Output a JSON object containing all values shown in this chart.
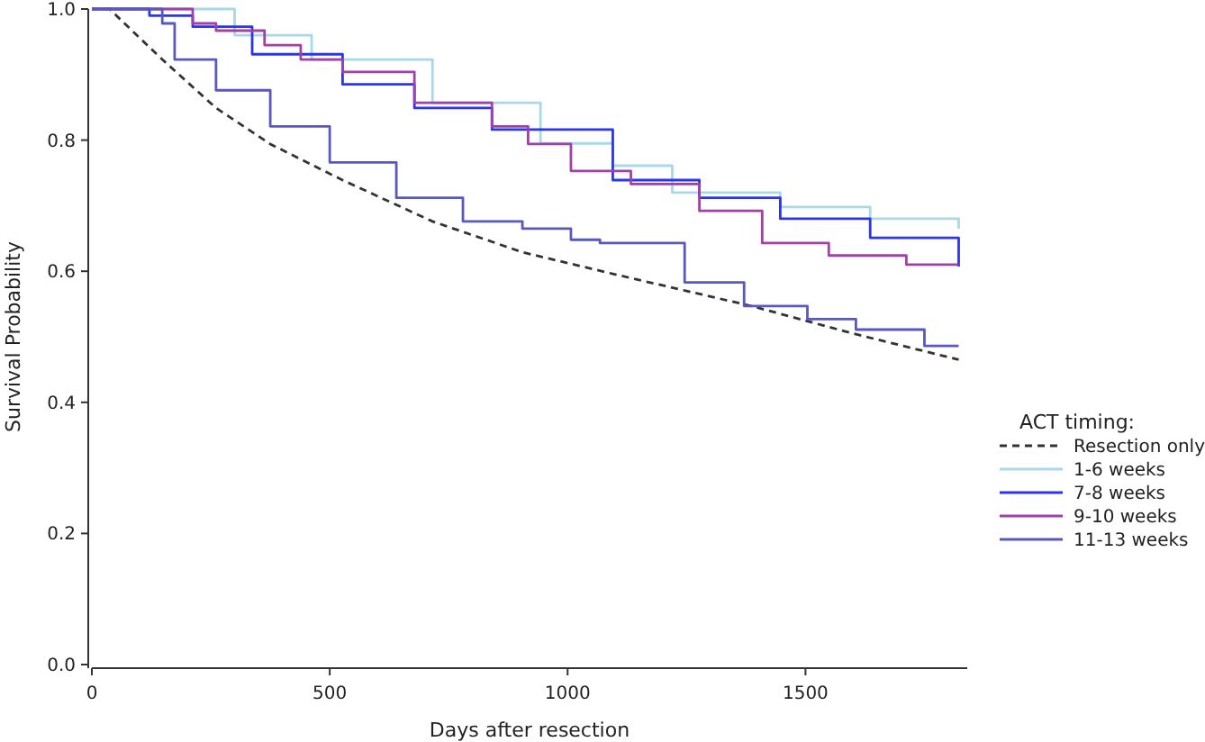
{
  "chart_data": {
    "type": "step",
    "xlabel": "Days after resection",
    "ylabel": "Survival Probability",
    "legend_title": "ACT timing:",
    "legend": "right",
    "xlim": [
      0,
      1840
    ],
    "ylim": [
      0,
      1
    ],
    "xticks": [
      0,
      500,
      1000,
      1500
    ],
    "yticks": [
      {
        "value": 0,
        "label": "0.0"
      },
      {
        "value": 0.2,
        "label": "0.2"
      },
      {
        "value": 0.4,
        "label": "0.4"
      },
      {
        "value": 0.6,
        "label": "0.6"
      },
      {
        "value": 0.8,
        "label": "0.8"
      },
      {
        "value": 1,
        "label": "1.0"
      }
    ],
    "series": [
      {
        "name": "Resection only",
        "type": "line",
        "line_style": "dashed",
        "color": "#333333",
        "x": [
          0,
          37,
          148,
          261,
          375,
          527,
          716,
          905,
          1095,
          1386,
          1600,
          1822
        ],
        "values": [
          1,
          1,
          0.923,
          0.849,
          0.794,
          0.739,
          0.676,
          0.629,
          0.596,
          0.547,
          0.505,
          0.465
        ]
      },
      {
        "name": "1-6 weeks",
        "color": "#a8d8ea",
        "x": [
          0,
          300,
          462,
          716,
          943,
          1095,
          1220,
          1447,
          1636,
          1822
        ],
        "values": [
          1,
          0.96,
          0.923,
          0.857,
          0.795,
          0.761,
          0.72,
          0.698,
          0.68,
          0.665
        ]
      },
      {
        "name": "7-8 weeks",
        "color": "#2a35f0",
        "x": [
          0,
          90,
          121,
          212,
          337,
          527,
          678,
          841,
          1095,
          1277,
          1447,
          1636,
          1822
        ],
        "values": [
          1,
          1,
          0.99,
          0.973,
          0.931,
          0.885,
          0.849,
          0.816,
          0.739,
          0.712,
          0.68,
          0.651,
          0.607
        ]
      },
      {
        "name": "9-10 weeks",
        "color": "#a040a8",
        "x": [
          0,
          110,
          212,
          261,
          363,
          439,
          527,
          678,
          841,
          917,
          1007,
          1133,
          1277,
          1409,
          1549,
          1712,
          1822
        ],
        "values": [
          1,
          1,
          0.978,
          0.967,
          0.945,
          0.923,
          0.904,
          0.857,
          0.821,
          0.794,
          0.753,
          0.733,
          0.692,
          0.643,
          0.624,
          0.61,
          0.61
        ]
      },
      {
        "name": "11-13 weeks",
        "color": "#5858c0",
        "x": [
          0,
          120,
          148,
          174,
          261,
          375,
          500,
          640,
          780,
          905,
          1007,
          1068,
          1246,
          1371,
          1504,
          1606,
          1750,
          1822
        ],
        "values": [
          1,
          1,
          0.978,
          0.923,
          0.876,
          0.821,
          0.766,
          0.712,
          0.676,
          0.665,
          0.648,
          0.643,
          0.583,
          0.547,
          0.527,
          0.511,
          0.486,
          0.486
        ]
      }
    ]
  }
}
